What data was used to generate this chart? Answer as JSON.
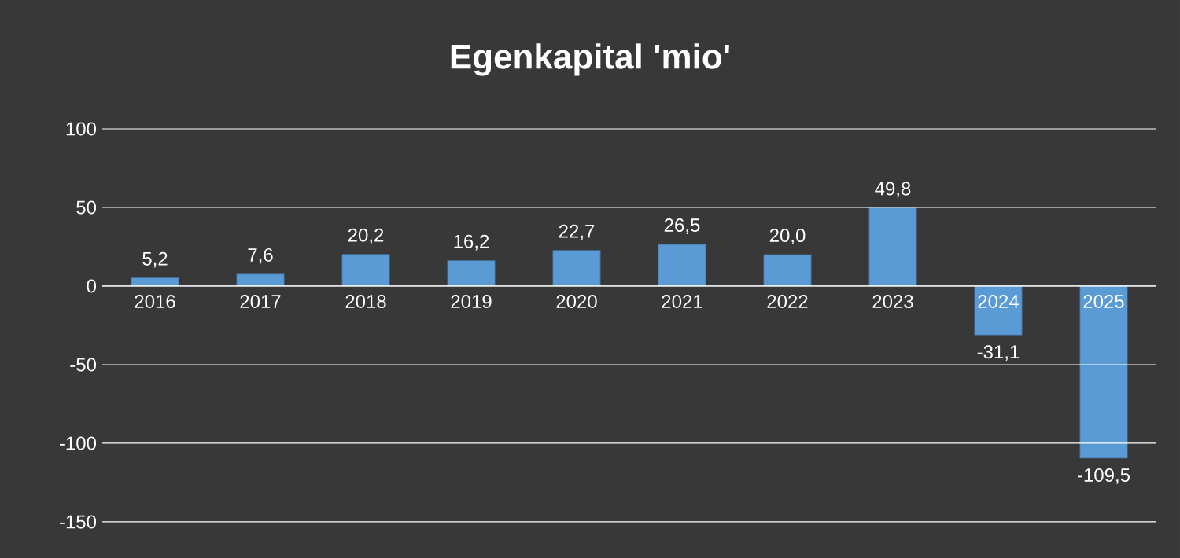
{
  "chart_data": {
    "type": "bar",
    "title": "Egenkapital 'mio'",
    "categories": [
      "2016",
      "2017",
      "2018",
      "2019",
      "2020",
      "2021",
      "2022",
      "2023",
      "2024",
      "2025"
    ],
    "values": [
      5.2,
      7.6,
      20.2,
      16.2,
      22.7,
      26.5,
      20.0,
      49.8,
      -31.1,
      -109.5
    ],
    "value_labels": [
      "5,2",
      "7,6",
      "20,2",
      "16,2",
      "22,7",
      "26,5",
      "20,0",
      "49,8",
      "-31,1",
      "-109,5"
    ],
    "color": "#5b9bd5",
    "ylim": [
      -150,
      100
    ],
    "yticks": [
      -150,
      -100,
      -50,
      0,
      50,
      100
    ],
    "grid": "y"
  }
}
